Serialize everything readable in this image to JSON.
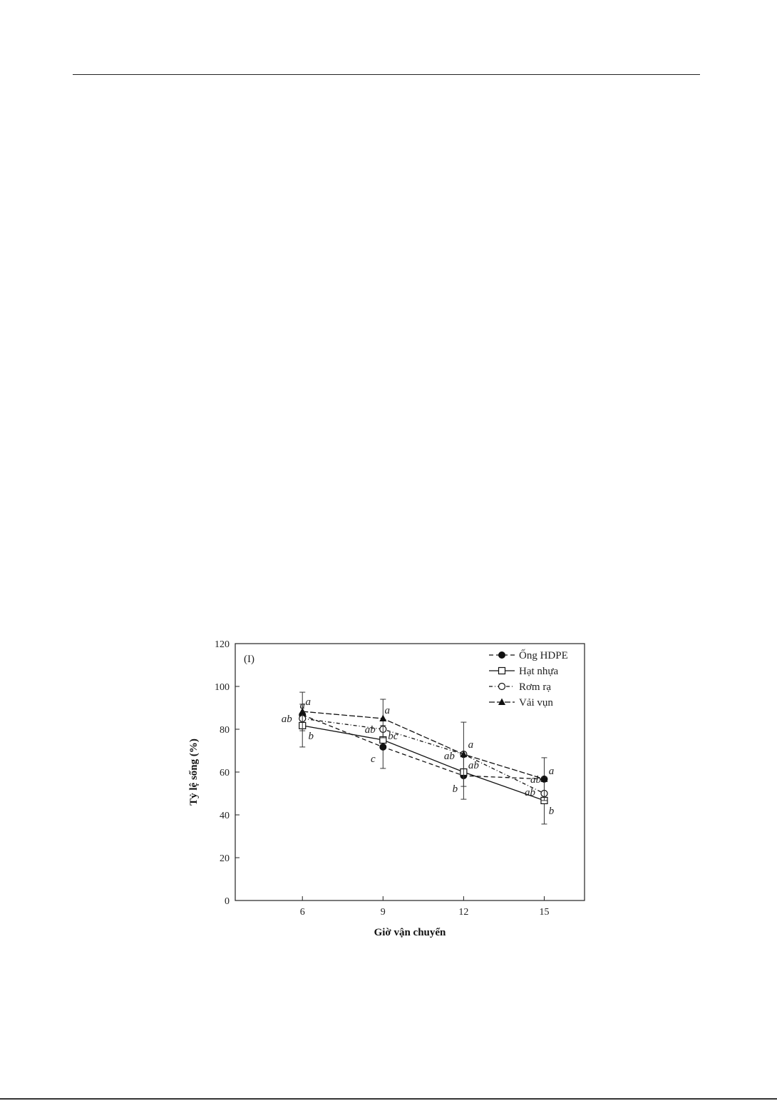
{
  "chart_data": {
    "type": "line",
    "panel_label": "(I)",
    "xlabel": "Giờ vận chuyển",
    "ylabel": "Tỷ lệ sống (%)",
    "x": [
      6,
      9,
      12,
      15
    ],
    "x_tick_labels": [
      "6",
      "9",
      "12",
      "15"
    ],
    "xlim": [
      3.5,
      16.5
    ],
    "ylim": [
      0,
      120
    ],
    "y_ticks": [
      0,
      20,
      40,
      60,
      80,
      100,
      120
    ],
    "grid": false,
    "legend_position": "top-right",
    "series": [
      {
        "name": "Ống HDPE",
        "marker": "filled-circle",
        "dash": "6,4",
        "values": [
          86.7,
          71.7,
          58.3,
          56.7
        ],
        "errors": [
          0,
          10,
          11,
          0
        ],
        "labels": [
          "a",
          "c",
          "b",
          "ab"
        ]
      },
      {
        "name": "Hạt nhựa",
        "marker": "open-square",
        "dash": "",
        "values": [
          81.7,
          75.0,
          60.0,
          46.7
        ],
        "errors": [
          10,
          0,
          0,
          11
        ],
        "labels": [
          "b",
          "bc",
          "ab",
          "b"
        ]
      },
      {
        "name": "Rơm rạ",
        "marker": "open-circle",
        "dash": "5,3,1,3",
        "values": [
          85.0,
          80.0,
          68.3,
          50.0
        ],
        "errors": [
          0,
          0,
          0,
          0
        ],
        "labels": [
          "ab",
          "ab",
          "ab",
          "ab"
        ]
      },
      {
        "name": "Vải vụn",
        "marker": "filled-triangle",
        "dash": "8,3",
        "values": [
          88.3,
          85.0,
          68.3,
          56.7
        ],
        "errors": [
          9,
          9,
          15,
          10
        ],
        "labels": [
          "a",
          "a",
          "a",
          "a"
        ]
      }
    ]
  }
}
